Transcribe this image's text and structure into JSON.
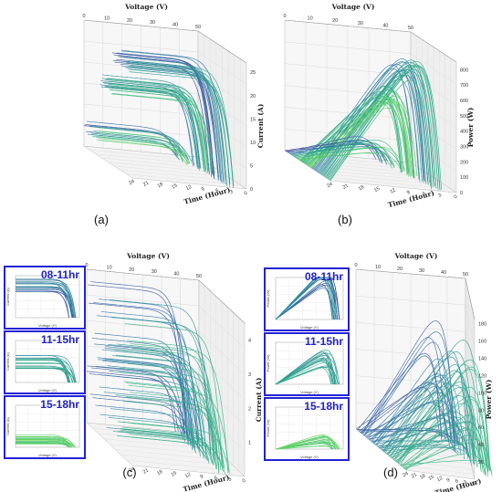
{
  "panels": [
    {
      "id": "a",
      "label": "(a)",
      "type": "3d-line",
      "x_axis": "Voltage (V)",
      "y_axis": "Current (A)",
      "z_axis": "Time (Hour)",
      "x_ticks": [
        "0",
        "10",
        "20",
        "30",
        "40",
        "50"
      ],
      "y_ticks": [
        "0",
        "5",
        "10",
        "15",
        "20",
        "25"
      ],
      "z_ticks": [
        "24",
        "21",
        "18",
        "15",
        "12",
        "9",
        "6",
        "3",
        "0"
      ],
      "ylim": [
        0,
        27
      ],
      "groups": [
        {
          "name": "08-11hr",
          "color": "#3b4ea0",
          "isc_range": [
            22,
            26
          ]
        },
        {
          "name": "11-15hr",
          "color": "#2aa38c",
          "isc_range": [
            15,
            18
          ]
        },
        {
          "name": "15-18hr",
          "color": "#53d36b",
          "isc_range": [
            3,
            6
          ]
        }
      ]
    },
    {
      "id": "b",
      "label": "(b)",
      "type": "3d-line",
      "x_axis": "Voltage (V)",
      "y_axis": "Power (W)",
      "z_axis": "Time (Hour)",
      "x_ticks": [
        "0",
        "10",
        "20",
        "30",
        "40",
        "50"
      ],
      "y_ticks": [
        "0",
        "100",
        "200",
        "300",
        "400",
        "500",
        "600",
        "700",
        "800"
      ],
      "z_ticks": [
        "24",
        "21",
        "18",
        "15",
        "12",
        "9",
        "6",
        "3",
        "0"
      ],
      "ylim": [
        0,
        850
      ],
      "peak_power": 820
    },
    {
      "id": "c",
      "label": "(c)",
      "type": "3d-line",
      "x_axis": "Voltage (V)",
      "y_axis": "Current (A)",
      "z_axis": "Time (Hour)",
      "x_ticks": [
        "0",
        "10",
        "20",
        "30",
        "40",
        "50"
      ],
      "y_ticks": [
        "1",
        "2",
        "3",
        "4"
      ],
      "z_ticks": [
        "24",
        "21",
        "18",
        "15",
        "12",
        "9",
        "6",
        "3",
        "0"
      ],
      "ylim": [
        0,
        4.5
      ],
      "insets": [
        {
          "title": "08-11hr",
          "y_label": "Current (A)",
          "x_label": "Voltage (V)"
        },
        {
          "title": "11-15hr",
          "y_label": "Current (A)",
          "x_label": "Voltage (V)"
        },
        {
          "title": "15-18hr",
          "y_label": "Current (A)",
          "x_label": "Voltage (V)"
        }
      ]
    },
    {
      "id": "d",
      "label": "(d)",
      "type": "3d-line",
      "x_axis": "Voltage (V)",
      "y_axis": "Power (W)",
      "z_axis": "Time (Hour)",
      "x_ticks": [
        "0",
        "10",
        "20",
        "30",
        "40",
        "50"
      ],
      "y_ticks": [
        "20",
        "40",
        "60",
        "80",
        "100",
        "120",
        "140",
        "160",
        "180"
      ],
      "z_ticks": [
        "24",
        "21",
        "18",
        "15",
        "12",
        "9",
        "6",
        "3",
        "0"
      ],
      "ylim": [
        0,
        185
      ],
      "insets": [
        {
          "title": "08-11hr",
          "y_label": "Power (W)",
          "x_label": "Voltage (V)"
        },
        {
          "title": "11-15hr",
          "y_label": "Power (W)",
          "x_label": "Voltage (V)"
        },
        {
          "title": "15-18hr",
          "y_label": "Power (W)",
          "x_label": "Voltage (V)"
        }
      ]
    }
  ],
  "chart_data": [
    {
      "type": "line",
      "panel": "a",
      "xlabel": "Voltage (V)",
      "ylabel": "Current (A)",
      "zlabel": "Time (Hour)",
      "xlim": [
        0,
        50
      ],
      "ylim": [
        0,
        27
      ],
      "series": [
        {
          "name": "08-11hr",
          "isc": [
            22,
            26
          ],
          "voc": [
            42,
            46
          ]
        },
        {
          "name": "11-15hr",
          "isc": [
            15,
            18
          ],
          "voc": [
            40,
            45
          ]
        },
        {
          "name": "15-18hr",
          "isc": [
            3,
            6
          ],
          "voc": [
            38,
            44
          ]
        }
      ]
    },
    {
      "type": "line",
      "panel": "b",
      "xlabel": "Voltage (V)",
      "ylabel": "Power (W)",
      "zlabel": "Time (Hour)",
      "xlim": [
        0,
        50
      ],
      "ylim": [
        0,
        850
      ],
      "series": [
        {
          "name": "08-11hr",
          "pmax": [
            700,
            820
          ]
        },
        {
          "name": "11-15hr",
          "pmax": [
            500,
            600
          ]
        },
        {
          "name": "15-18hr",
          "pmax": [
            100,
            250
          ]
        }
      ]
    },
    {
      "type": "line",
      "panel": "c",
      "xlabel": "Voltage (V)",
      "ylabel": "Current (A)",
      "zlabel": "Time (Hour)",
      "xlim": [
        0,
        50
      ],
      "ylim": [
        0,
        4.5
      ],
      "series": [
        {
          "name": "08-11hr",
          "isc": [
            3.5,
            4.4
          ]
        },
        {
          "name": "11-15hr",
          "isc": [
            2,
            3.4
          ]
        },
        {
          "name": "15-18hr",
          "isc": [
            0.3,
            1.5
          ]
        }
      ]
    },
    {
      "type": "line",
      "panel": "d",
      "xlabel": "Voltage (V)",
      "ylabel": "Power (W)",
      "zlabel": "Time (Hour)",
      "xlim": [
        0,
        50
      ],
      "ylim": [
        0,
        185
      ],
      "series": [
        {
          "name": "08-11hr",
          "pmax": [
            120,
            175
          ]
        },
        {
          "name": "11-15hr",
          "pmax": [
            60,
            120
          ]
        },
        {
          "name": "15-18hr",
          "pmax": [
            5,
            60
          ]
        }
      ]
    }
  ]
}
